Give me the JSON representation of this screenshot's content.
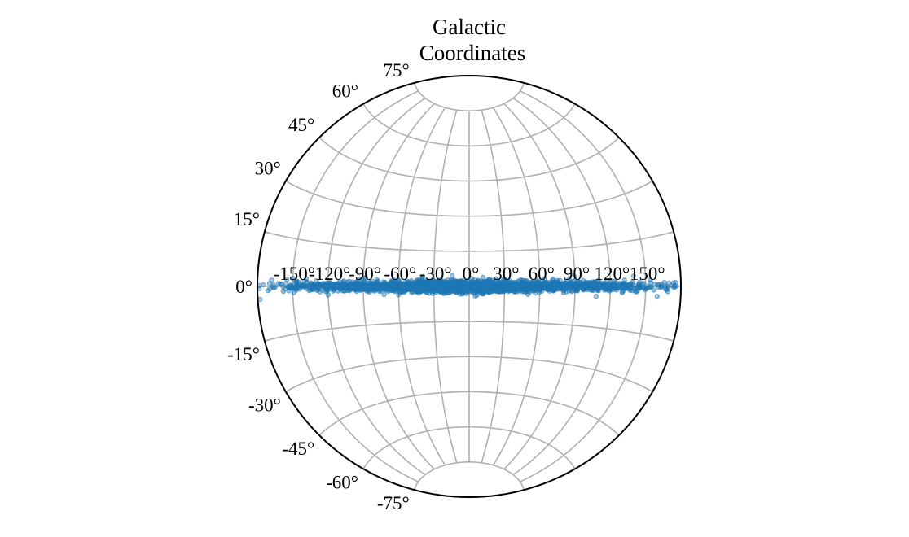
{
  "chart_data": {
    "type": "scatter",
    "projection": "aitoff",
    "title_lines": [
      "Galactic",
      "Coordinates"
    ],
    "x_ticks": [
      -150,
      -120,
      -90,
      -60,
      -30,
      0,
      30,
      60,
      90,
      120,
      150
    ],
    "x_tick_labels": [
      "-150°",
      "-120°",
      "-90°",
      "-60°",
      "-30°",
      "0°",
      "30°",
      "60°",
      "90°",
      "120°",
      "150°"
    ],
    "y_ticks": [
      75,
      60,
      45,
      30,
      15,
      0,
      -15,
      -30,
      -45,
      -60,
      -75
    ],
    "y_tick_labels": [
      "75°",
      "60°",
      "45°",
      "30°",
      "15°",
      "0°",
      "-15°",
      "-30°",
      "-45°",
      "-60°",
      "-75°"
    ],
    "xlim": [
      -180,
      180
    ],
    "ylim": [
      -90,
      90
    ],
    "grid": true,
    "colors": {
      "points": "#1f77b4",
      "grid": "#b0b0b0",
      "outline": "#000000"
    },
    "series": [
      {
        "points": [
          [
            -178,
            -3.6
          ],
          [
            -175,
            0.5
          ],
          [
            -171,
            -1.2
          ],
          [
            -168,
            1.8
          ],
          [
            -166,
            -0.4
          ],
          [
            -162,
            0.9
          ],
          [
            -158,
            -1.5
          ],
          [
            -155,
            2.1
          ],
          [
            -152,
            0.3
          ],
          [
            -149,
            -2.0
          ],
          [
            -147,
            1.1
          ],
          [
            -144,
            -0.8
          ],
          [
            -141,
            0.6
          ],
          [
            -138,
            1.5
          ],
          [
            -136,
            -1.4
          ],
          [
            -133,
            0.2
          ],
          [
            -130,
            1.9
          ],
          [
            -128,
            -0.9
          ],
          [
            -125,
            0.4
          ],
          [
            -122,
            -1.8
          ],
          [
            -120,
            1.2
          ],
          [
            -117,
            0.0
          ],
          [
            -115,
            -1.1
          ],
          [
            -112,
            0.8
          ],
          [
            -110,
            1.7
          ],
          [
            -107,
            -0.5
          ],
          [
            -105,
            0.9
          ],
          [
            -102,
            -1.6
          ],
          [
            -100,
            0.3
          ],
          [
            -97,
            1.4
          ],
          [
            -95,
            -0.9
          ],
          [
            -92,
            0.6
          ],
          [
            -90,
            2.2
          ],
          [
            -87,
            -1.3
          ],
          [
            -85,
            0.1
          ],
          [
            -82,
            1.0
          ],
          [
            -80,
            -0.7
          ],
          [
            -77,
            0.5
          ],
          [
            -75,
            -1.9
          ],
          [
            -72,
            1.3
          ],
          [
            -70,
            0.2
          ],
          [
            -67,
            -1.0
          ],
          [
            -65,
            0.8
          ],
          [
            -62,
            1.6
          ],
          [
            -60,
            -0.6
          ],
          [
            -57,
            0.4
          ],
          [
            -55,
            -1.4
          ],
          [
            -52,
            1.1
          ],
          [
            -50,
            0.0
          ],
          [
            -47,
            -0.9
          ],
          [
            -45,
            1.5
          ],
          [
            -42,
            0.3
          ],
          [
            -40,
            -1.7
          ],
          [
            -37,
            0.7
          ],
          [
            -35,
            1.2
          ],
          [
            -32,
            -0.4
          ],
          [
            -30,
            0.9
          ],
          [
            -27,
            -1.2
          ],
          [
            -25,
            0.2
          ],
          [
            -22,
            1.8
          ],
          [
            -20,
            -0.8
          ],
          [
            -17,
            0.5
          ],
          [
            -15,
            -1.5
          ],
          [
            -12,
            1.0
          ],
          [
            -10,
            0.1
          ],
          [
            -7,
            -1.1
          ],
          [
            -5,
            1.4
          ],
          [
            -2,
            0.3
          ],
          [
            0,
            -0.6
          ],
          [
            2,
            1.2
          ],
          [
            5,
            -1.8
          ],
          [
            7,
            0.4
          ],
          [
            10,
            0.9
          ],
          [
            12,
            -0.5
          ],
          [
            15,
            1.6
          ],
          [
            17,
            -1.3
          ],
          [
            20,
            0.2
          ],
          [
            22,
            0.8
          ],
          [
            25,
            -1.0
          ],
          [
            27,
            1.3
          ],
          [
            30,
            0.0
          ],
          [
            32,
            -1.6
          ],
          [
            35,
            0.6
          ],
          [
            37,
            1.1
          ],
          [
            40,
            -0.7
          ],
          [
            42,
            0.4
          ],
          [
            45,
            1.9
          ],
          [
            47,
            -1.2
          ],
          [
            50,
            0.2
          ],
          [
            52,
            0.9
          ],
          [
            55,
            -0.4
          ],
          [
            57,
            1.4
          ],
          [
            60,
            -1.5
          ],
          [
            62,
            0.5
          ],
          [
            65,
            1.0
          ],
          [
            67,
            -0.9
          ],
          [
            70,
            0.3
          ],
          [
            72,
            1.7
          ],
          [
            75,
            -1.1
          ],
          [
            77,
            0.6
          ],
          [
            80,
            -0.2
          ],
          [
            82,
            1.2
          ],
          [
            85,
            -1.7
          ],
          [
            87,
            0.4
          ],
          [
            90,
            0.9
          ],
          [
            92,
            -0.6
          ],
          [
            95,
            1.5
          ],
          [
            97,
            -1.3
          ],
          [
            100,
            0.1
          ],
          [
            102,
            0.8
          ],
          [
            105,
            -0.9
          ],
          [
            107,
            1.3
          ],
          [
            110,
            -1.6
          ],
          [
            112,
            0.5
          ],
          [
            115,
            1.0
          ],
          [
            117,
            -0.4
          ],
          [
            120,
            1.8
          ],
          [
            122,
            -1.2
          ],
          [
            125,
            0.3
          ],
          [
            128,
            1.1
          ],
          [
            130,
            -2.1
          ],
          [
            133,
            0.7
          ],
          [
            136,
            -0.5
          ],
          [
            139,
            1.4
          ],
          [
            142,
            -1.8
          ],
          [
            145,
            0.4
          ],
          [
            148,
            1.0
          ],
          [
            151,
            -0.7
          ],
          [
            154,
            2.0
          ],
          [
            157,
            -1.1
          ],
          [
            160,
            0.5
          ],
          [
            163,
            -0.3
          ],
          [
            166,
            1.2
          ],
          [
            169,
            -1.5
          ],
          [
            172,
            0.2
          ],
          [
            176,
            0.1
          ],
          [
            -88,
            3.5
          ],
          [
            -40,
            3.0
          ],
          [
            12,
            -3.2
          ],
          [
            64,
            3.1
          ],
          [
            108,
            -3.6
          ],
          [
            -120,
            -3.0
          ],
          [
            140,
            3.4
          ],
          [
            -60,
            -3.4
          ],
          [
            30,
            2.9
          ],
          [
            -150,
            2.5
          ],
          [
            160,
            -3.0
          ],
          [
            90,
            3.6
          ],
          [
            -20,
            -2.8
          ],
          [
            50,
            -3.3
          ]
        ]
      }
    ]
  }
}
